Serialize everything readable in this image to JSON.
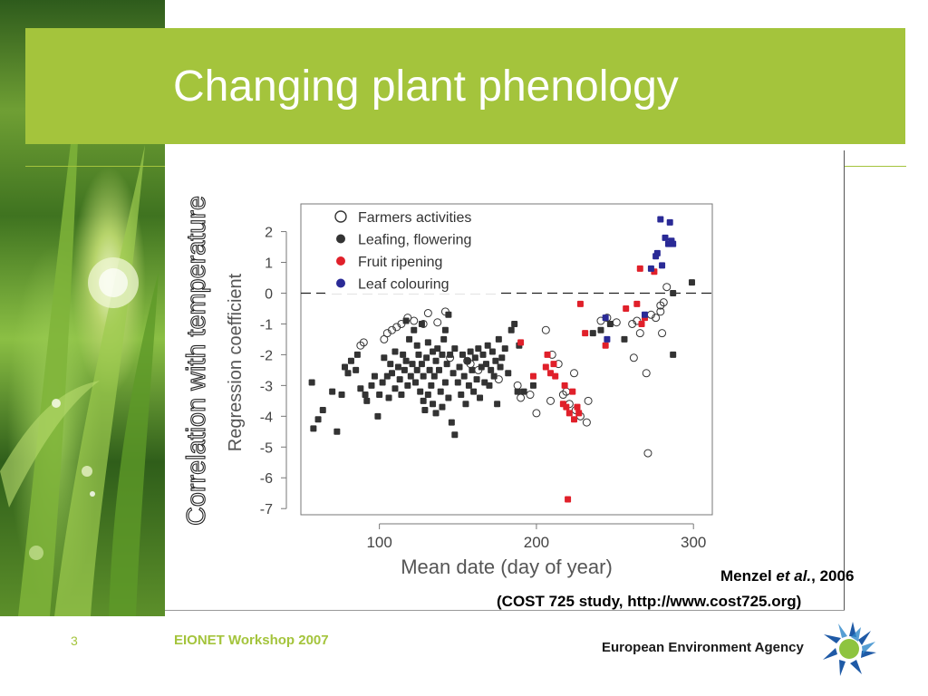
{
  "slide": {
    "title": "Changing plant phenology",
    "page_number": "3",
    "footer": "EIONET Workshop 2007",
    "agency_name": "European Environment Agency",
    "citation_author": "Menzel ",
    "citation_etal": "et al.",
    "citation_year": ", 2006",
    "citation_source": "(COST 725 study, http://www.cost725.org)",
    "colors": {
      "accent": "#a4c43c",
      "series_black": "#333333",
      "series_red": "#e0202a",
      "series_blue": "#2a2a96"
    }
  },
  "chart_data": {
    "type": "scatter",
    "rotated_label": "Correlation with temperature",
    "xlabel": "Mean date (day of year)",
    "ylabel": "Regression coefficient",
    "xlim": [
      50,
      312
    ],
    "ylim": [
      -7.2,
      2.9
    ],
    "x_ticks": [
      "100",
      "200",
      "300"
    ],
    "y_ticks": [
      "2",
      "1",
      "0",
      "-1",
      "-2",
      "-3",
      "-4",
      "-5",
      "-6",
      "-7"
    ],
    "x_tick_values": [
      100,
      200,
      300
    ],
    "y_tick_values": [
      2,
      1,
      0,
      -1,
      -2,
      -3,
      -4,
      -5,
      -6,
      -7
    ],
    "reference_line": 0,
    "legend_position": "top-left",
    "series": [
      {
        "name": "Farmers activities",
        "marker": "open-circle",
        "color": "#333333",
        "points": [
          [
            88,
            -1.7
          ],
          [
            90,
            -1.6
          ],
          [
            103,
            -1.5
          ],
          [
            105,
            -1.3
          ],
          [
            108,
            -1.2
          ],
          [
            111,
            -1.1
          ],
          [
            114,
            -1.0
          ],
          [
            118,
            -0.8
          ],
          [
            122,
            -0.9
          ],
          [
            128,
            -1.0
          ],
          [
            131,
            -0.65
          ],
          [
            137,
            -0.95
          ],
          [
            142,
            -0.6
          ],
          [
            145,
            -2.1
          ],
          [
            156,
            -2.2
          ],
          [
            158,
            -2.3
          ],
          [
            163,
            -2.5
          ],
          [
            176,
            -2.8
          ],
          [
            188,
            -3.0
          ],
          [
            190,
            -3.4
          ],
          [
            196,
            -3.3
          ],
          [
            200,
            -3.9
          ],
          [
            206,
            -1.2
          ],
          [
            209,
            -3.5
          ],
          [
            210,
            -2.0
          ],
          [
            214,
            -2.3
          ],
          [
            217,
            -3.3
          ],
          [
            219,
            -3.2
          ],
          [
            221,
            -3.6
          ],
          [
            224,
            -2.6
          ],
          [
            225,
            -3.8
          ],
          [
            228,
            -4.0
          ],
          [
            232,
            -4.2
          ],
          [
            233,
            -3.5
          ],
          [
            241,
            -0.9
          ],
          [
            245,
            -0.8
          ],
          [
            251,
            -0.95
          ],
          [
            261,
            -1.0
          ],
          [
            262,
            -2.1
          ],
          [
            264,
            -0.9
          ],
          [
            266,
            -1.3
          ],
          [
            270,
            -2.6
          ],
          [
            271,
            -5.2
          ],
          [
            273,
            -0.7
          ],
          [
            276,
            -0.8
          ],
          [
            279,
            -0.6
          ],
          [
            279,
            -0.4
          ],
          [
            280,
            -1.3
          ],
          [
            281,
            -0.3
          ],
          [
            283,
            0.2
          ]
        ]
      },
      {
        "name": "Leafing, flowering",
        "marker": "filled-square",
        "color": "#333333",
        "points": [
          [
            57,
            -2.9
          ],
          [
            58,
            -4.4
          ],
          [
            61,
            -4.1
          ],
          [
            64,
            -3.8
          ],
          [
            70,
            -3.2
          ],
          [
            73,
            -4.5
          ],
          [
            76,
            -3.3
          ],
          [
            78,
            -2.4
          ],
          [
            80,
            -2.6
          ],
          [
            82,
            -2.2
          ],
          [
            85,
            -2.5
          ],
          [
            86,
            -2.0
          ],
          [
            88,
            -3.1
          ],
          [
            91,
            -3.3
          ],
          [
            92,
            -3.5
          ],
          [
            95,
            -3.0
          ],
          [
            97,
            -2.7
          ],
          [
            99,
            -4.0
          ],
          [
            100,
            -3.3
          ],
          [
            102,
            -2.9
          ],
          [
            103,
            -2.1
          ],
          [
            105,
            -2.7
          ],
          [
            106,
            -3.4
          ],
          [
            107,
            -2.3
          ],
          [
            108,
            -2.6
          ],
          [
            110,
            -3.1
          ],
          [
            110,
            -1.9
          ],
          [
            112,
            -2.4
          ],
          [
            113,
            -2.8
          ],
          [
            114,
            -3.3
          ],
          [
            115,
            -2.0
          ],
          [
            116,
            -2.5
          ],
          [
            117,
            -2.2
          ],
          [
            117,
            -0.9
          ],
          [
            118,
            -3.0
          ],
          [
            119,
            -1.5
          ],
          [
            120,
            -2.7
          ],
          [
            121,
            -2.3
          ],
          [
            122,
            -1.2
          ],
          [
            123,
            -2.9
          ],
          [
            124,
            -2.5
          ],
          [
            124,
            -1.7
          ],
          [
            125,
            -2.0
          ],
          [
            126,
            -3.2
          ],
          [
            127,
            -2.3
          ],
          [
            127,
            -1.0
          ],
          [
            128,
            -2.7
          ],
          [
            128,
            -3.5
          ],
          [
            129,
            -3.8
          ],
          [
            130,
            -2.1
          ],
          [
            131,
            -3.3
          ],
          [
            131,
            -1.6
          ],
          [
            132,
            -2.5
          ],
          [
            133,
            -3.0
          ],
          [
            134,
            -1.9
          ],
          [
            134,
            -3.6
          ],
          [
            135,
            -2.7
          ],
          [
            136,
            -2.2
          ],
          [
            136,
            -3.9
          ],
          [
            137,
            -1.8
          ],
          [
            138,
            -2.5
          ],
          [
            139,
            -3.2
          ],
          [
            140,
            -2.0
          ],
          [
            140,
            -3.7
          ],
          [
            141,
            -1.5
          ],
          [
            142,
            -2.9
          ],
          [
            142,
            -1.2
          ],
          [
            143,
            -2.3
          ],
          [
            144,
            -3.4
          ],
          [
            144,
            -0.7
          ],
          [
            145,
            -2.0
          ],
          [
            146,
            -4.2
          ],
          [
            147,
            -2.6
          ],
          [
            148,
            -4.6
          ],
          [
            148,
            -1.8
          ],
          [
            150,
            -2.9
          ],
          [
            151,
            -2.4
          ],
          [
            152,
            -3.3
          ],
          [
            153,
            -2.0
          ],
          [
            154,
            -2.7
          ],
          [
            155,
            -3.6
          ],
          [
            156,
            -2.2
          ],
          [
            157,
            -3.0
          ],
          [
            158,
            -1.9
          ],
          [
            159,
            -2.5
          ],
          [
            160,
            -3.2
          ],
          [
            161,
            -2.1
          ],
          [
            162,
            -2.8
          ],
          [
            163,
            -1.8
          ],
          [
            164,
            -3.4
          ],
          [
            165,
            -2.4
          ],
          [
            166,
            -2.0
          ],
          [
            167,
            -2.9
          ],
          [
            168,
            -2.3
          ],
          [
            169,
            -1.7
          ],
          [
            170,
            -3.0
          ],
          [
            171,
            -2.5
          ],
          [
            172,
            -1.9
          ],
          [
            173,
            -2.7
          ],
          [
            174,
            -2.2
          ],
          [
            175,
            -3.6
          ],
          [
            176,
            -1.5
          ],
          [
            177,
            -2.4
          ],
          [
            178,
            -2.1
          ],
          [
            180,
            -1.8
          ],
          [
            182,
            -2.6
          ],
          [
            184,
            -1.2
          ],
          [
            186,
            -1.0
          ],
          [
            188,
            -3.2
          ],
          [
            189,
            -1.7
          ],
          [
            192,
            -3.2
          ],
          [
            198,
            -3.0
          ],
          [
            236,
            -1.3
          ],
          [
            241,
            -1.2
          ],
          [
            247,
            -1.0
          ],
          [
            256,
            -1.5
          ],
          [
            287,
            -2.0
          ],
          [
            287,
            0.0
          ],
          [
            299,
            0.35
          ]
        ]
      },
      {
        "name": "Fruit ripening",
        "marker": "filled-square",
        "color": "#e0202a",
        "points": [
          [
            190,
            -1.6
          ],
          [
            198,
            -2.7
          ],
          [
            206,
            -2.4
          ],
          [
            207,
            -2.0
          ],
          [
            209,
            -2.6
          ],
          [
            211,
            -2.3
          ],
          [
            212,
            -2.7
          ],
          [
            217,
            -3.6
          ],
          [
            218,
            -3.0
          ],
          [
            219,
            -3.7
          ],
          [
            220,
            -6.7
          ],
          [
            221,
            -3.9
          ],
          [
            223,
            -3.2
          ],
          [
            224,
            -4.1
          ],
          [
            226,
            -3.7
          ],
          [
            227,
            -3.9
          ],
          [
            228,
            -0.35
          ],
          [
            231,
            -1.3
          ],
          [
            244,
            -1.7
          ],
          [
            257,
            -0.5
          ],
          [
            264,
            -0.35
          ],
          [
            266,
            0.8
          ],
          [
            267,
            -1.0
          ],
          [
            269,
            -0.8
          ],
          [
            275,
            0.7
          ]
        ]
      },
      {
        "name": "Leaf colouring",
        "marker": "filled-square",
        "color": "#2a2a96",
        "points": [
          [
            244,
            -0.8
          ],
          [
            245,
            -1.5
          ],
          [
            269,
            -0.7
          ],
          [
            273,
            0.8
          ],
          [
            276,
            1.2
          ],
          [
            277,
            1.3
          ],
          [
            279,
            2.4
          ],
          [
            280,
            0.9
          ],
          [
            282,
            1.8
          ],
          [
            284,
            1.6
          ],
          [
            285,
            2.3
          ],
          [
            286,
            1.7
          ],
          [
            287,
            1.6
          ]
        ]
      }
    ]
  }
}
